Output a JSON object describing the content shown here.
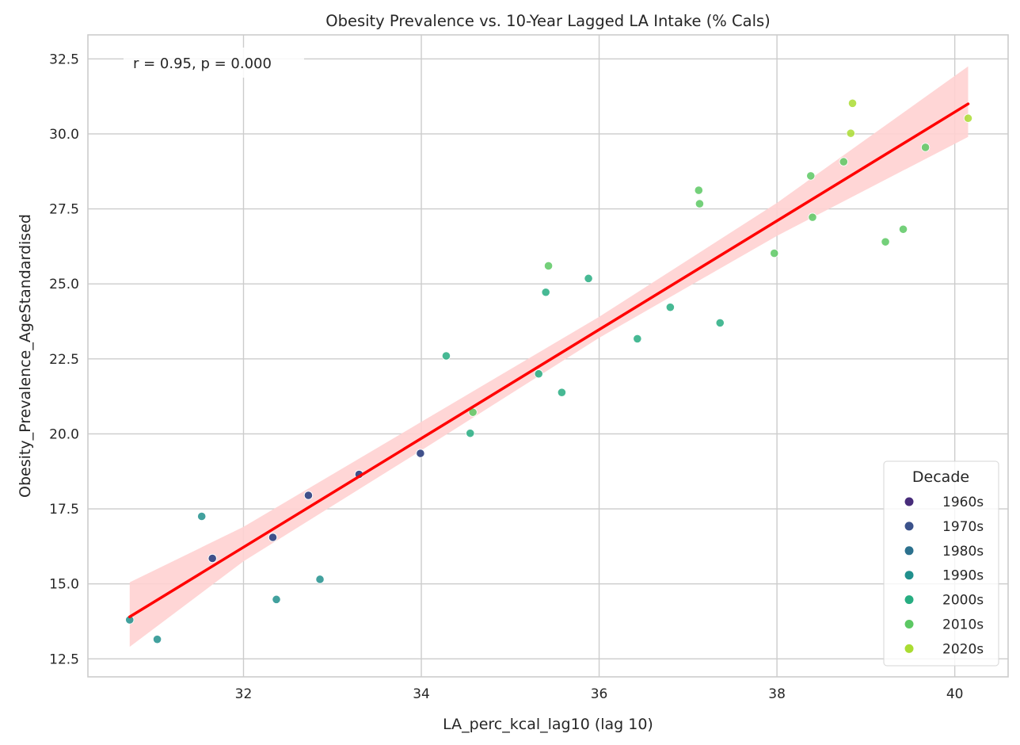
{
  "chart_data": {
    "type": "scatter",
    "title": "Obesity Prevalence vs. 10-Year Lagged LA Intake (% Cals)",
    "xlabel": "LA_perc_kcal_lag10 (lag 10)",
    "ylabel": "Obesity_Prevalence_AgeStandardised",
    "xlim": [
      30.25,
      40.6
    ],
    "ylim": [
      11.9,
      33.3
    ],
    "x_ticks": [
      32,
      34,
      36,
      38,
      40
    ],
    "x_tick_labels": [
      "32",
      "34",
      "36",
      "38",
      "40"
    ],
    "y_ticks": [
      12.5,
      15.0,
      17.5,
      20.0,
      22.5,
      25.0,
      27.5,
      30.0,
      32.5
    ],
    "y_tick_labels": [
      "12.5",
      "15.0",
      "17.5",
      "20.0",
      "22.5",
      "25.0",
      "27.5",
      "30.0",
      "32.5"
    ],
    "grid": true,
    "annotation": "r = 0.95, p = 0.000",
    "legend": {
      "title": "Decade",
      "placement": "bottom-right",
      "entries": [
        {
          "label": "1960s",
          "color": "#472c7a"
        },
        {
          "label": "1970s",
          "color": "#3b528b"
        },
        {
          "label": "1980s",
          "color": "#2c718e"
        },
        {
          "label": "1990s",
          "color": "#21908d"
        },
        {
          "label": "2000s",
          "color": "#27ad81"
        },
        {
          "label": "2010s",
          "color": "#5cc863"
        },
        {
          "label": "2020s",
          "color": "#aadc32"
        }
      ]
    },
    "regression": {
      "x_start": 30.72,
      "y_start": 13.9,
      "x_end": 40.15,
      "y_end": 31.0,
      "color": "#ff0000",
      "band_color": "#ffd2d2",
      "band_lower": [
        [
          30.72,
          12.9
        ],
        [
          32.0,
          15.75
        ],
        [
          34.0,
          19.45
        ],
        [
          36.0,
          23.2
        ],
        [
          38.0,
          26.6
        ],
        [
          40.15,
          29.9
        ]
      ],
      "band_upper": [
        [
          30.72,
          15.05
        ],
        [
          32.0,
          16.9
        ],
        [
          34.0,
          20.4
        ],
        [
          36.0,
          23.9
        ],
        [
          38.0,
          27.7
        ],
        [
          40.15,
          32.25
        ]
      ]
    },
    "series": [
      {
        "name": "1960s",
        "color": "#472c7a",
        "points": [
          [
            31.65,
            15.85
          ],
          [
            32.33,
            16.55
          ],
          [
            32.73,
            17.95
          ],
          [
            33.3,
            18.65
          ],
          [
            33.99,
            19.35
          ]
        ]
      },
      {
        "name": "1970s",
        "color": "#3b528b",
        "points": [
          [
            31.65,
            15.85
          ],
          [
            32.33,
            16.55
          ],
          [
            32.73,
            17.95
          ],
          [
            33.3,
            18.65
          ],
          [
            33.99,
            19.35
          ]
        ]
      },
      {
        "name": "1980s",
        "color": "#2c718e",
        "points": []
      },
      {
        "name": "1990s",
        "color": "#21908d",
        "points": [
          [
            30.72,
            13.8
          ],
          [
            31.03,
            13.15
          ],
          [
            31.53,
            17.25
          ],
          [
            32.37,
            14.48
          ],
          [
            32.86,
            15.15
          ]
        ]
      },
      {
        "name": "2000s",
        "color": "#27ad81",
        "points": [
          [
            34.28,
            22.6
          ],
          [
            34.55,
            20.02
          ],
          [
            35.32,
            22.0
          ],
          [
            35.4,
            24.72
          ],
          [
            35.58,
            21.38
          ],
          [
            35.88,
            25.18
          ],
          [
            36.43,
            23.17
          ],
          [
            36.8,
            24.22
          ],
          [
            37.36,
            23.7
          ]
        ]
      },
      {
        "name": "2010s",
        "color": "#5cc863",
        "points": [
          [
            34.58,
            20.72
          ],
          [
            35.43,
            25.6
          ],
          [
            37.12,
            28.12
          ],
          [
            37.13,
            27.67
          ],
          [
            37.97,
            26.02
          ],
          [
            38.38,
            28.6
          ],
          [
            38.4,
            27.22
          ],
          [
            38.75,
            29.07
          ],
          [
            39.22,
            26.4
          ],
          [
            39.42,
            26.82
          ],
          [
            39.67,
            29.55
          ]
        ]
      },
      {
        "name": "2020s",
        "color": "#aadc32",
        "points": [
          [
            38.83,
            30.02
          ],
          [
            38.85,
            31.02
          ],
          [
            40.15,
            30.52
          ]
        ]
      }
    ]
  }
}
